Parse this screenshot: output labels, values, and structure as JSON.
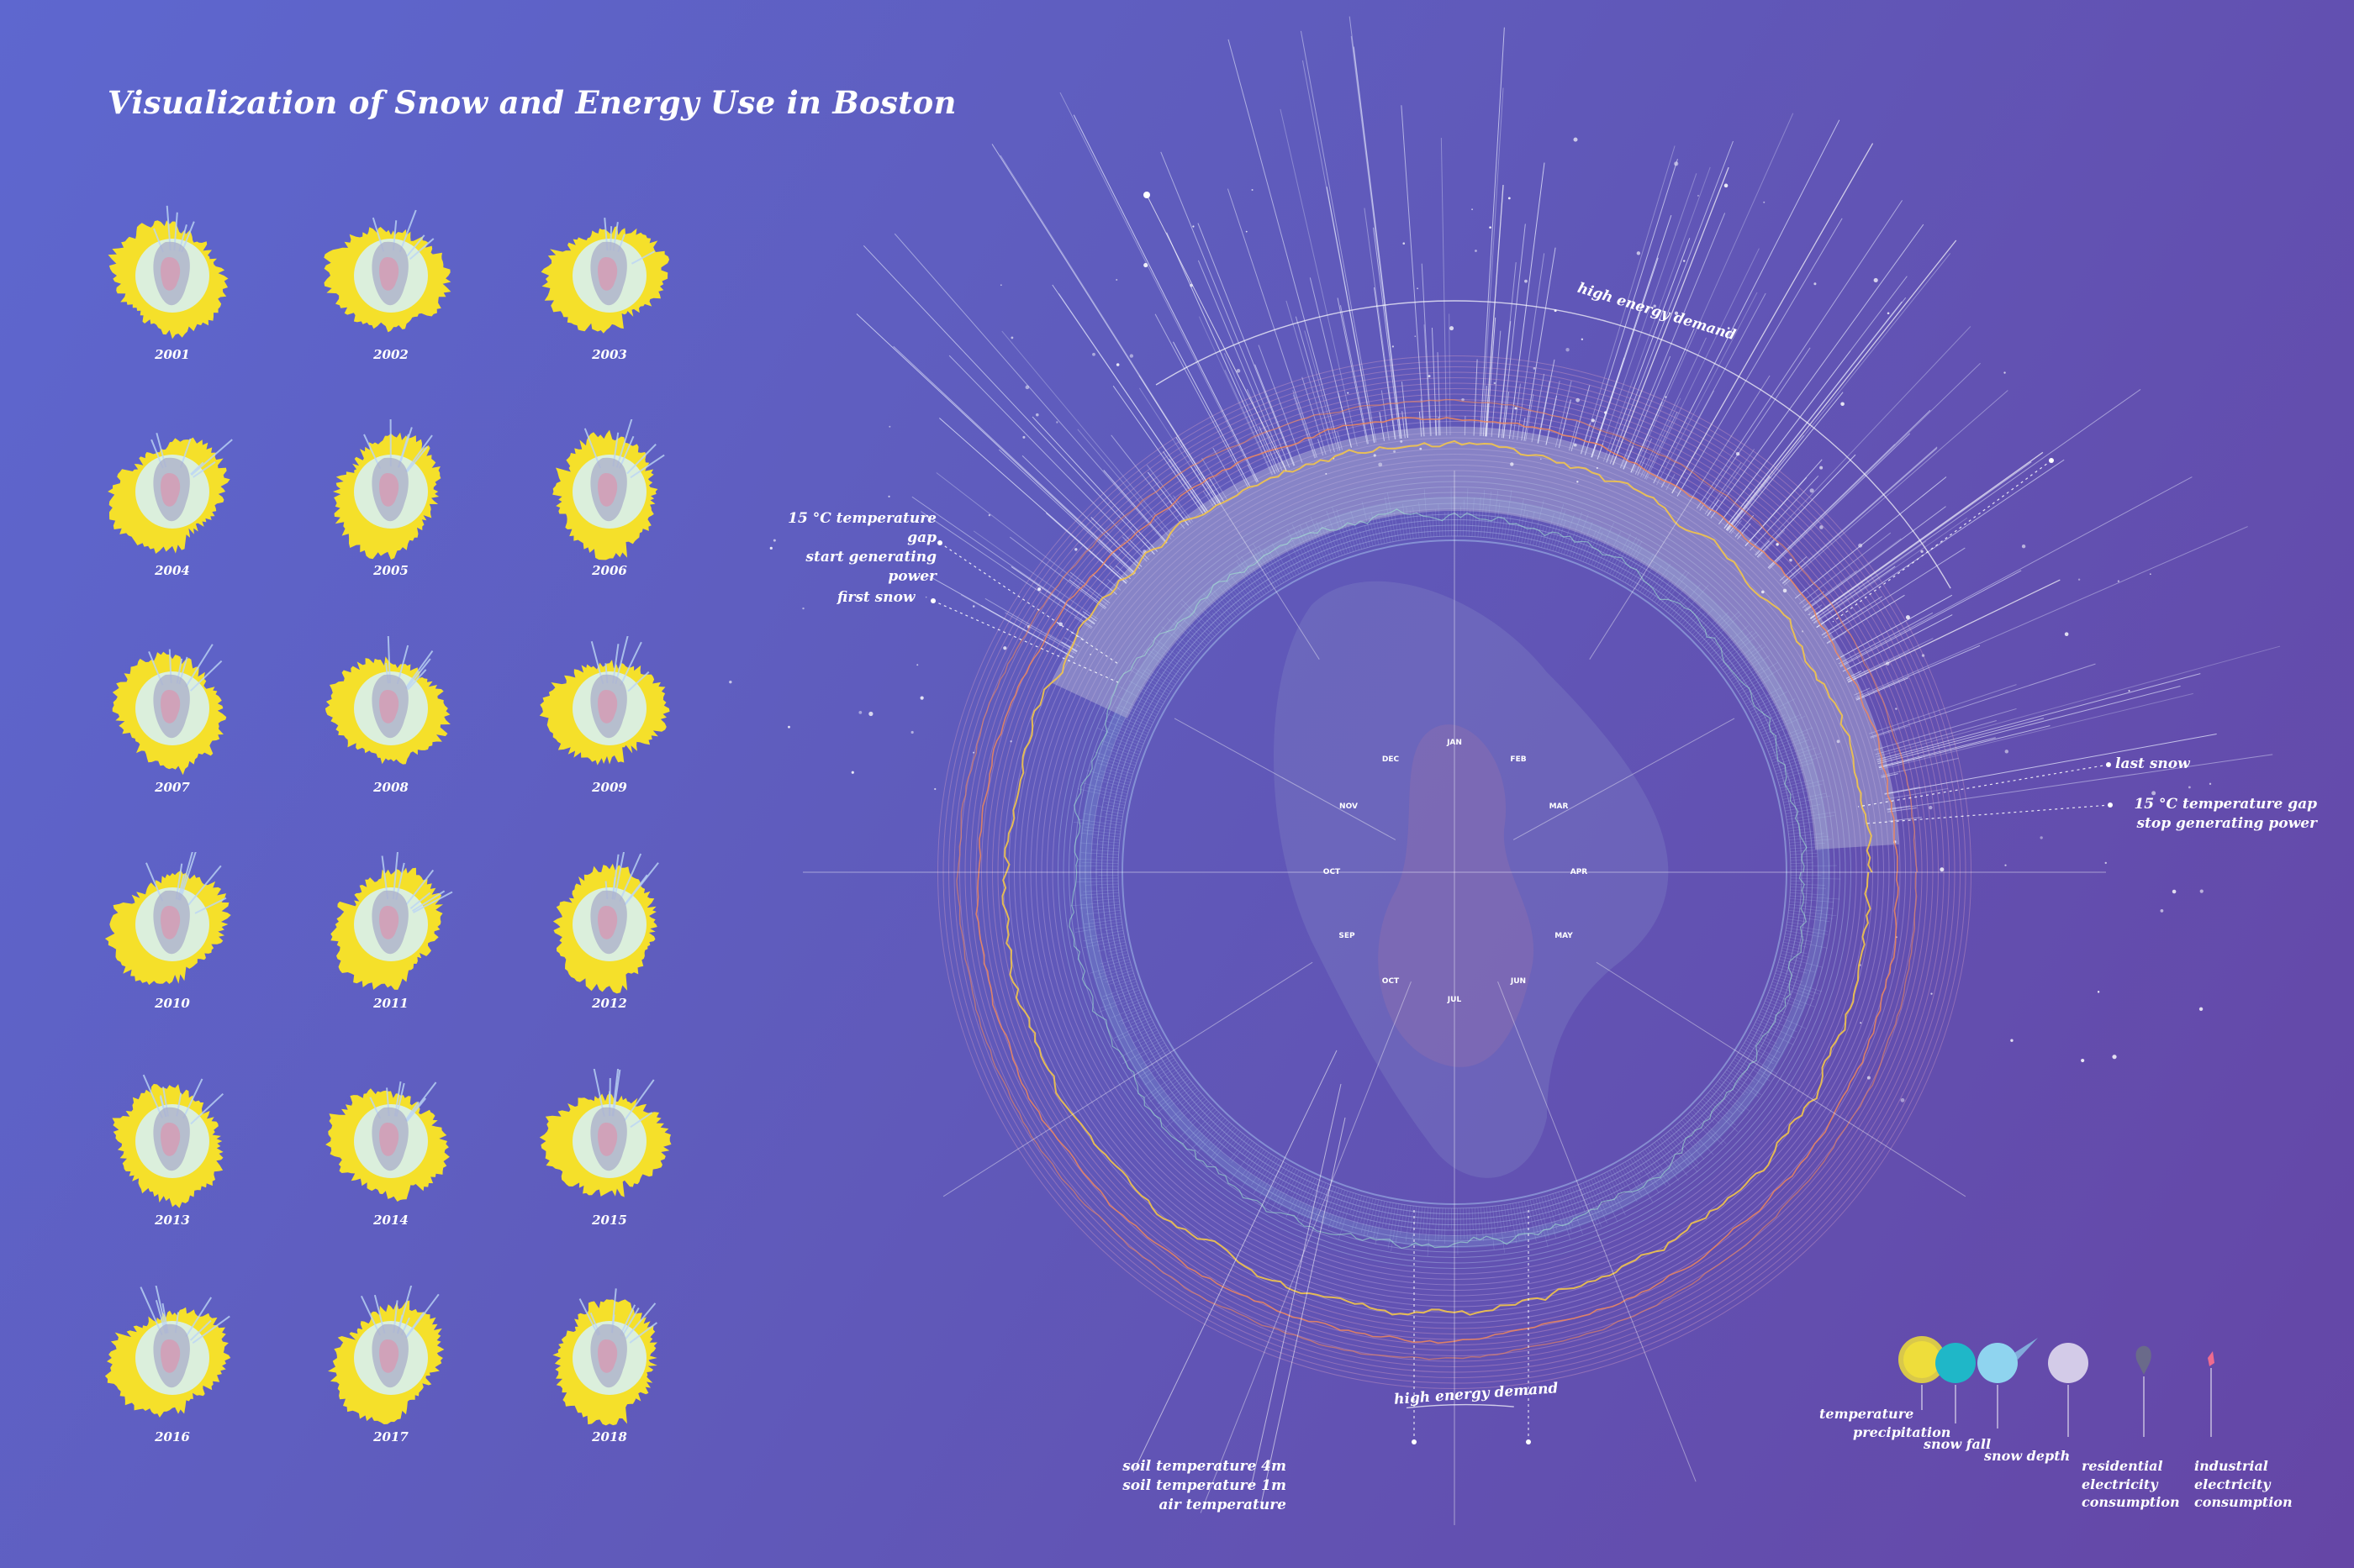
{
  "title": "Visualization of Snow and Energy Use in Boston",
  "years": [
    "2001",
    "2002",
    "2003",
    "2004",
    "2005",
    "2006",
    "2007",
    "2008",
    "2009",
    "2010",
    "2011",
    "2012",
    "2013",
    "2014",
    "2015",
    "2016",
    "2017",
    "2018"
  ],
  "months_outer": [
    "JAN",
    "FEB",
    "MAR",
    "APR",
    "MAY",
    "JUN",
    "JUL",
    "OCT",
    "SEP",
    "OCT",
    "NOV",
    "DEC"
  ],
  "annotations": {
    "high_energy_top": "high energy demand",
    "high_energy_bottom": "high energy demand",
    "gap_start_line1": "15 °C temperature gap",
    "gap_start_line2": "start generating power",
    "first_snow": "first snow",
    "last_snow": "last snow",
    "gap_stop_line1": "15 °C temperature gap",
    "gap_stop_line2": "stop generating power",
    "soil4": "soil temperature 4m",
    "soil1": "soil temperature 1m",
    "air": "air temperature"
  },
  "legend": {
    "temperature": "temperature",
    "precipitation": "precipitation",
    "snow_fall": "snow fall",
    "snow_depth": "snow depth",
    "residential_line1": "residential",
    "residential_line2": "electricity",
    "residential_line3": "consumption",
    "industrial_line1": "industrial",
    "industrial_line2": "electricity",
    "industrial_line3": "consumption"
  },
  "colors": {
    "background_start": "#5e67cf",
    "background_end": "#6546a6",
    "temperature": "#f5e02a",
    "snow_fall": "#1fb7c8",
    "snow_depth": "#8fd4ef",
    "residential": "#d3cbe8",
    "industrial": "#ef6b8e",
    "air_temperature_line": "#f2c44a",
    "soil_line": "#f0875a"
  }
}
